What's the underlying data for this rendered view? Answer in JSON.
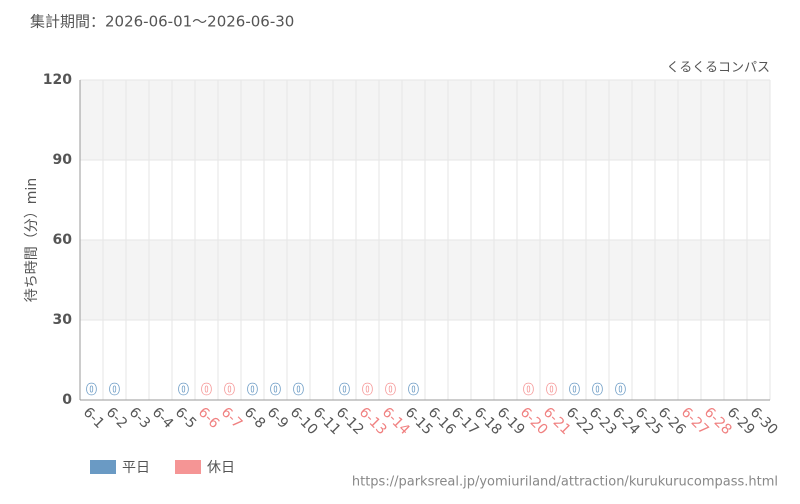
{
  "chart_data": {
    "type": "bar",
    "title": "集計期間：2026-06-01～2026-06-30",
    "source": "くるくるコンパス",
    "url": "https://parksreal.jp/yomiuriland/attraction/kurukurucompass.html",
    "y_label": "待ち時間（分）min",
    "categories": [
      "6-1",
      "6-2",
      "6-3",
      "6-4",
      "6-5",
      "6-6",
      "6-7",
      "6-8",
      "6-9",
      "6-10",
      "6-11",
      "6-12",
      "6-13",
      "6-14",
      "6-15",
      "6-16",
      "6-17",
      "6-18",
      "6-19",
      "6-20",
      "6-21",
      "6-22",
      "6-23",
      "6-24",
      "6-25",
      "6-26",
      "6-27",
      "6-28",
      "6-29",
      "6-30"
    ],
    "category_colors": [
      "#555",
      "#555",
      "#555",
      "#555",
      "#555",
      "#f08080",
      "#f08080",
      "#555",
      "#555",
      "#555",
      "#555",
      "#555",
      "#f08080",
      "#f08080",
      "#555",
      "#555",
      "#555",
      "#555",
      "#555",
      "#f08080",
      "#f08080",
      "#555",
      "#555",
      "#555",
      "#555",
      "#555",
      "#f08080",
      "#f08080",
      "#555",
      "#555"
    ],
    "series": [
      {
        "name": "平日",
        "color": "#6a9ac4",
        "values": [
          0,
          0,
          null,
          null,
          0,
          null,
          null,
          0,
          0,
          0,
          null,
          0,
          null,
          null,
          0,
          null,
          null,
          null,
          null,
          null,
          null,
          0,
          0,
          0,
          null,
          null,
          null,
          null,
          null,
          null
        ]
      },
      {
        "name": "休日",
        "color": "#f59595",
        "values": [
          null,
          null,
          null,
          null,
          null,
          0,
          0,
          null,
          null,
          null,
          null,
          null,
          0,
          0,
          null,
          null,
          null,
          null,
          null,
          0,
          0,
          null,
          null,
          null,
          null,
          null,
          null,
          null,
          null,
          null
        ]
      }
    ],
    "ylim": [
      0,
      120
    ],
    "yticks": [
      0,
      30,
      60,
      90,
      120
    ],
    "grid": true
  }
}
